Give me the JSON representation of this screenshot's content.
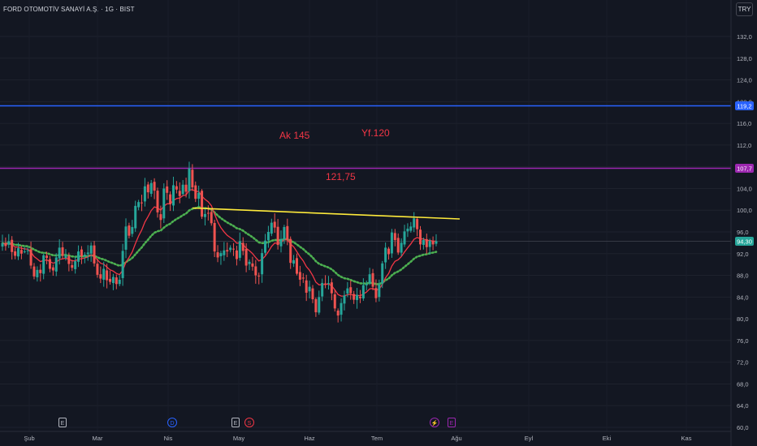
{
  "header": {
    "title": "FORD OTOMOTİV SANAYİ A.Ş. · 1G · BIST",
    "currency": "TRY"
  },
  "annotations": {
    "ak": "Ak 145",
    "yf": "Yf.120",
    "mid": "121,75"
  },
  "price_tags": {
    "blue": "119,2",
    "purple": "107,7",
    "last": "94,30"
  },
  "colors": {
    "background": "#131722",
    "up": "#26a69a",
    "down": "#ef5350",
    "ema_fast": "#f23645",
    "ema_slow": "#4caf50",
    "blue_line": "#2962ff",
    "purple_line": "#9c27b0",
    "trend_line": "#ffeb3b",
    "annotation": "#f23645"
  },
  "event_markers": [
    {
      "label": "E",
      "date": "Şub",
      "color": "#b2b5be"
    },
    {
      "label": "D",
      "date": "Nis",
      "color": "#2962ff"
    },
    {
      "label": "E",
      "date": "May",
      "color": "#b2b5be"
    },
    {
      "label": "S",
      "date": "May",
      "color": "#f23645"
    },
    {
      "label": "⚡",
      "date": "Tem",
      "color": "#9c27b0"
    },
    {
      "label": "E",
      "date": "Tem",
      "color": "#9c27b0"
    }
  ],
  "chart_data": {
    "type": "candlestick",
    "x_ticks": [
      "Şub",
      "Mar",
      "Nis",
      "May",
      "Haz",
      "Tem",
      "Ağu",
      "Eyl",
      "Eki",
      "Kas"
    ],
    "y_ticks": [
      60.0,
      64.0,
      68.0,
      72.0,
      76.0,
      80.0,
      84.0,
      88.0,
      92.0,
      96.0,
      100.0,
      104.0,
      108.0,
      112.0,
      116.0,
      120.0,
      124.0,
      128.0,
      132.0
    ],
    "ylim": [
      59.7,
      133.8
    ],
    "closes": [
      93.9,
      93.4,
      94.3,
      92.3,
      91.6,
      93.0,
      92.0,
      92.4,
      92.6,
      89.8,
      87.8,
      89.0,
      88.4,
      91.7,
      91.2,
      89.2,
      88.9,
      91.3,
      93.1,
      91.6,
      91.7,
      90.1,
      89.4,
      90.6,
      92.4,
      91.5,
      91.8,
      92.2,
      93.5,
      90.2,
      88.1,
      87.4,
      89.2,
      87.1,
      86.8,
      87.7,
      86.4,
      87.2,
      92.5,
      97.0,
      95.3,
      96.9,
      100.8,
      101.5,
      101.4,
      104.4,
      103.3,
      105.0,
      103.6,
      99.6,
      98.2,
      104.0,
      103.2,
      101.1,
      104.6,
      103.8,
      102.6,
      104.7,
      103.4,
      107.7,
      104.2,
      102.1,
      103.2,
      98.8,
      99.3,
      99.5,
      97.6,
      92.4,
      91.3,
      92.1,
      92.6,
      92.4,
      93.1,
      92.8,
      91.0,
      94.3,
      92.5,
      89.8,
      90.5,
      89.6,
      88.0,
      87.8,
      92.1,
      94.4,
      96.0,
      97.7,
      96.8,
      93.6,
      94.7,
      96.9,
      94.6,
      90.3,
      90.8,
      88.3,
      87.2,
      87.4,
      84.8,
      85.9,
      83.6,
      81.2,
      84.0,
      86.6,
      86.5,
      86.6,
      84.7,
      81.9,
      80.6,
      82.9,
      84.3,
      85.6,
      84.7,
      83.5,
      84.4,
      83.8,
      86.2,
      86.4,
      88.2,
      85.9,
      83.8,
      86.3,
      90.2,
      93.1,
      91.9,
      95.9,
      94.5,
      92.2,
      94.0,
      96.1,
      96.6,
      97.0,
      98.5,
      96.5,
      93.7,
      94.5,
      93.2,
      94.4,
      93.7,
      94.3
    ]
  }
}
